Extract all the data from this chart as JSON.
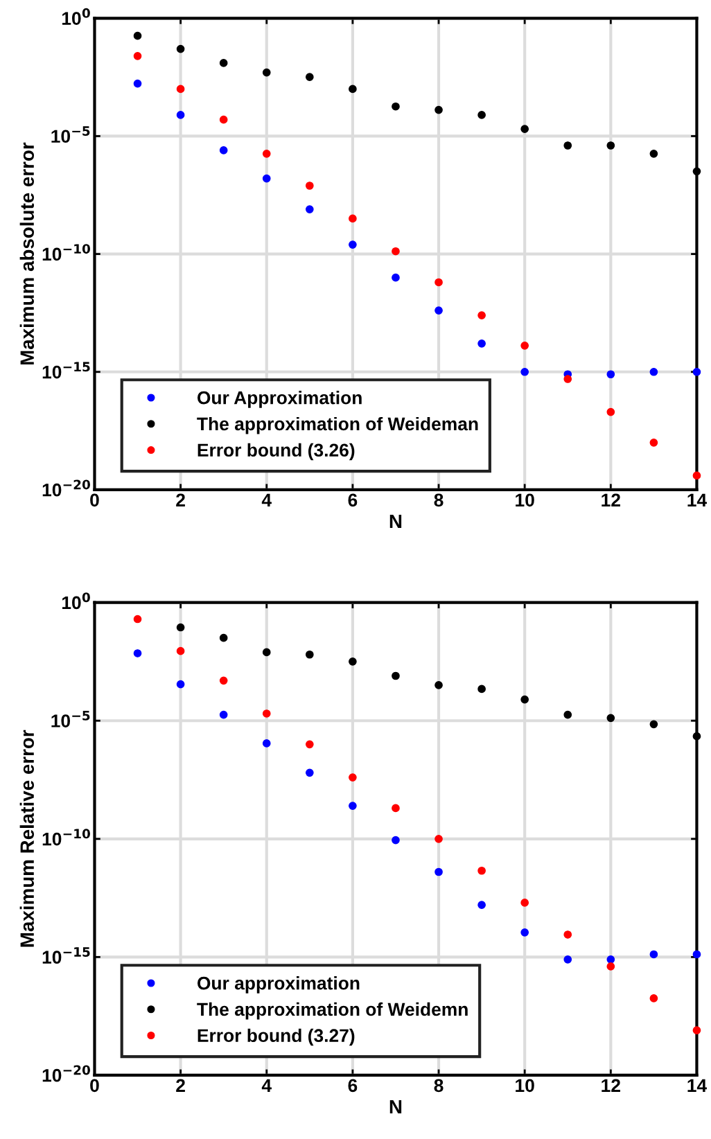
{
  "chart_data": [
    {
      "type": "scatter",
      "xlabel": "N",
      "ylabel": "Maximum absolute error",
      "log": "y",
      "grid": true,
      "legend": "bottom left",
      "marker": "circle",
      "x": [
        1,
        2,
        3,
        4,
        5,
        6,
        7,
        8,
        9,
        10,
        11,
        12,
        13,
        14
      ],
      "xlim": [
        0,
        14
      ],
      "xticks": [
        0,
        2,
        4,
        6,
        8,
        10,
        12,
        14
      ],
      "ylim": [
        1e-20,
        1
      ],
      "yticks": [
        {
          "value": 1e-20,
          "label": "10$^{−20}$"
        },
        {
          "value": 1e-15,
          "label": "10$^{−15}$"
        },
        {
          "value": 1e-10,
          "label": "10$^{−10}$"
        },
        {
          "value": 1e-05,
          "label": "10$^{−5}$"
        },
        {
          "value": 1,
          "label": "10$^{0}$"
        }
      ],
      "series": [
        {
          "name": "Our Approximation",
          "color": "#0000ff",
          "values": [
            0.0017,
            7.9e-05,
            2.5e-06,
            1.6e-07,
            7.9e-09,
            2.5e-10,
            1e-11,
            4e-13,
            1.6e-14,
            1e-15,
            7.9e-16,
            7.9e-16,
            1e-15,
            1e-15
          ]
        },
        {
          "name": "The approximation of Weideman",
          "color": "#000000",
          "values": [
            0.18,
            0.05,
            0.0126,
            0.005,
            0.0032,
            0.001,
            0.00018,
            0.00013,
            7.9e-05,
            2e-05,
            4e-06,
            4e-06,
            1.8e-06,
            3.2e-07
          ]
        },
        {
          "name": "Error bound (3.26)",
          "color": "#ff0000",
          "values": [
            0.025,
            0.001,
            5e-05,
            1.8e-06,
            7.9e-08,
            3.2e-09,
            1.3e-10,
            6.3e-12,
            2.5e-13,
            1.3e-14,
            5e-16,
            2e-17,
            1e-18,
            4e-20
          ]
        }
      ]
    },
    {
      "type": "scatter",
      "xlabel": "N",
      "ylabel": "Maximum Relative error",
      "log": "y",
      "grid": true,
      "legend": "bottom left",
      "marker": "circle",
      "x": [
        1,
        2,
        3,
        4,
        5,
        6,
        7,
        8,
        9,
        10,
        11,
        12,
        13,
        14
      ],
      "xlim": [
        0,
        14
      ],
      "xticks": [
        0,
        2,
        4,
        6,
        8,
        10,
        12,
        14
      ],
      "ylim": [
        1e-20,
        1
      ],
      "yticks": [
        {
          "value": 1e-20,
          "label": "10$^{−20}$"
        },
        {
          "value": 1e-15,
          "label": "10$^{−15}$"
        },
        {
          "value": 1e-10,
          "label": "10$^{−10}$"
        },
        {
          "value": 1e-05,
          "label": "10$^{−5}$"
        },
        {
          "value": 1,
          "label": "10$^{0}$"
        }
      ],
      "series": [
        {
          "name": "Our approximation",
          "color": "#0000ff",
          "values": [
            0.0071,
            0.00035,
            1.8e-05,
            1.1e-06,
            6.3e-08,
            2.5e-09,
            8.9e-11,
            4e-12,
            1.6e-13,
            1.1e-14,
            7.9e-16,
            7.9e-16,
            1.3e-15,
            1.3e-15
          ]
        },
        {
          "name": "The approximation of Weidemn",
          "color": "#000000",
          "values": [
            null,
            0.089,
            0.032,
            0.0079,
            0.0063,
            0.0032,
            0.00079,
            0.00032,
            0.00022,
            7.9e-05,
            1.8e-05,
            1.3e-05,
            7.1e-06,
            2.2e-06
          ]
        },
        {
          "name": "Error bound (3.27)",
          "color": "#ff0000",
          "values": [
            0.2,
            0.0089,
            0.0005,
            2e-05,
            1e-06,
            4e-08,
            2e-09,
            1e-10,
            4.5e-12,
            2e-13,
            8.9e-15,
            4e-16,
            1.8e-17,
            7.9e-19
          ]
        }
      ]
    }
  ]
}
